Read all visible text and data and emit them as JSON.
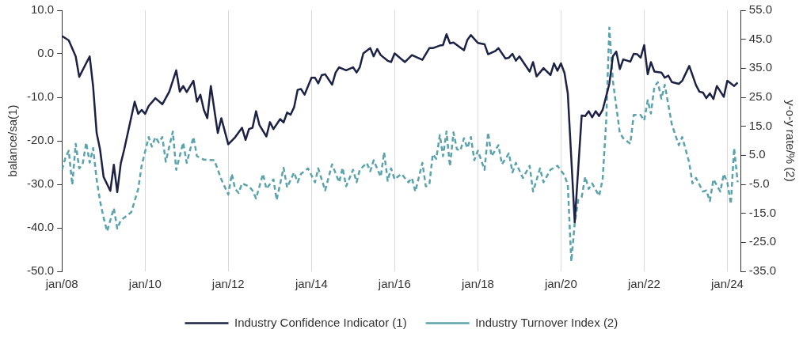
{
  "chart_data": {
    "type": "line",
    "ylabel": "balance/sa(1)",
    "y2label": "y-o-y rate/% (2)",
    "xlim": [
      "2008-01",
      "2024-05"
    ],
    "xticks": [
      {
        "value": "2008-01",
        "label": "jan/08"
      },
      {
        "value": "2010-01",
        "label": "jan/10"
      },
      {
        "value": "2012-01",
        "label": "jan/12"
      },
      {
        "value": "2014-01",
        "label": "jan/14"
      },
      {
        "value": "2016-01",
        "label": "jan/16"
      },
      {
        "value": "2018-01",
        "label": "jan/18"
      },
      {
        "value": "2020-01",
        "label": "jan/20"
      },
      {
        "value": "2022-01",
        "label": "jan/22"
      },
      {
        "value": "2024-01",
        "label": "jan/24"
      }
    ],
    "ylim": [
      -50,
      10
    ],
    "yticks": [
      {
        "value": 10,
        "label": "10.0"
      },
      {
        "value": 0,
        "label": "0.0"
      },
      {
        "value": -10,
        "label": "-10.0"
      },
      {
        "value": -20,
        "label": "-20.0"
      },
      {
        "value": -30,
        "label": "-30.0"
      },
      {
        "value": -40,
        "label": "-40.0"
      },
      {
        "value": -50,
        "label": "-50.0"
      }
    ],
    "y2lim": [
      -35,
      55
    ],
    "y2ticks": [
      {
        "value": 55,
        "label": "55.0"
      },
      {
        "value": 45,
        "label": "45.0"
      },
      {
        "value": 35,
        "label": "35.0"
      },
      {
        "value": 25,
        "label": "25.0"
      },
      {
        "value": 15,
        "label": "15.0"
      },
      {
        "value": 5,
        "label": "5.0"
      },
      {
        "value": -5,
        "label": "-5.0"
      },
      {
        "value": -15,
        "label": "-15.0"
      },
      {
        "value": -25,
        "label": "-25.0"
      },
      {
        "value": -35,
        "label": "-35.0"
      }
    ],
    "grid": "x",
    "legend": "bottom",
    "marker": "none",
    "series": [
      {
        "name": "Industry Confidence Indicator (1)",
        "color": "#1c2145",
        "line_style": "solid",
        "x": [
          "2008-01",
          "2008-03",
          "2008-05",
          "2008-06",
          "2008-09",
          "2008-10",
          "2008-11",
          "2008-12",
          "2009-01",
          "2009-03",
          "2009-04",
          "2009-05",
          "2009-06",
          "2009-07",
          "2009-10",
          "2009-11",
          "2009-12",
          "2010-01",
          "2010-02",
          "2010-04",
          "2010-06",
          "2010-08",
          "2010-10",
          "2010-11",
          "2010-12",
          "2011-01",
          "2011-03",
          "2011-04",
          "2011-05",
          "2011-06",
          "2011-07",
          "2011-08",
          "2011-10",
          "2011-11",
          "2012-01",
          "2012-03",
          "2012-05",
          "2012-06",
          "2012-07",
          "2012-08",
          "2012-09",
          "2012-10",
          "2012-12",
          "2013-01",
          "2013-02",
          "2013-04",
          "2013-05",
          "2013-06",
          "2013-07",
          "2013-08",
          "2013-09",
          "2013-10",
          "2013-11",
          "2014-01",
          "2014-02",
          "2014-03",
          "2014-04",
          "2014-05",
          "2014-07",
          "2014-08",
          "2014-09",
          "2014-11",
          "2015-01",
          "2015-02",
          "2015-03",
          "2015-04",
          "2015-06",
          "2015-07",
          "2015-08",
          "2015-09",
          "2015-11",
          "2015-12",
          "2016-01",
          "2016-04",
          "2016-06",
          "2016-09",
          "2016-11",
          "2016-12",
          "2017-02",
          "2017-03",
          "2017-04",
          "2017-05",
          "2017-06",
          "2017-09",
          "2017-10",
          "2017-11",
          "2018-01",
          "2018-03",
          "2018-04",
          "2018-06",
          "2018-07",
          "2018-09",
          "2018-10",
          "2018-11",
          "2018-12",
          "2019-01",
          "2019-04",
          "2019-05",
          "2019-06",
          "2019-08",
          "2019-10",
          "2019-11",
          "2019-12",
          "2020-01",
          "2020-02",
          "2020-03",
          "2020-05",
          "2020-07",
          "2020-08",
          "2020-09",
          "2020-10",
          "2020-11",
          "2020-12",
          "2021-01",
          "2021-02",
          "2021-03",
          "2021-04",
          "2021-05",
          "2021-06",
          "2021-07",
          "2021-09",
          "2021-10",
          "2021-11",
          "2021-12",
          "2022-01",
          "2022-02",
          "2022-03",
          "2022-04",
          "2022-06",
          "2022-07",
          "2022-08",
          "2022-09",
          "2022-11",
          "2022-12",
          "2023-02",
          "2023-04",
          "2023-05",
          "2023-06",
          "2023-07",
          "2023-08",
          "2023-09",
          "2023-10",
          "2023-12",
          "2024-01",
          "2024-03",
          "2024-04"
        ],
        "values": [
          4.1,
          3.1,
          -0.6,
          -5.3,
          -0.6,
          -7.5,
          -18.2,
          -22,
          -28.3,
          -31.5,
          -25.5,
          -31.8,
          -25.2,
          -22,
          -11,
          -13.8,
          -12.9,
          -13.8,
          -12,
          -10.2,
          -11.6,
          -8.7,
          -3.8,
          -8.7,
          -7.4,
          -8.8,
          -6.2,
          -11,
          -9.4,
          -12.9,
          -14.8,
          -7.4,
          -18.2,
          -14.8,
          -20.8,
          -19.2,
          -17,
          -19.8,
          -17.3,
          -17,
          -13.2,
          -16.4,
          -19,
          -15.7,
          -17.3,
          -15,
          -15.8,
          -13.5,
          -14,
          -12.3,
          -8.3,
          -8.1,
          -9.4,
          -5.5,
          -5.5,
          -6.8,
          -4.9,
          -4.7,
          -7.1,
          -4.3,
          -3.1,
          -3.8,
          -3.1,
          -4.3,
          -3.1,
          0.1,
          1.3,
          -0.6,
          1.1,
          -0.3,
          -1.6,
          -1.9,
          0.1,
          -1.9,
          -0.3,
          -1.4,
          1.3,
          1.3,
          1.9,
          2,
          4.5,
          2.4,
          2.6,
          0.8,
          3.2,
          4.3,
          2.5,
          2.2,
          -0.1,
          0.6,
          1.3,
          -1.1,
          -0.9,
          0,
          -1.6,
          -0.6,
          -4.1,
          -1.9,
          -5.2,
          -3.3,
          -4.9,
          -2.2,
          -3.9,
          -2.2,
          -4.4,
          -9.1,
          -38.7,
          -14.2,
          -14.3,
          -13.2,
          -14.6,
          -13.2,
          -14.3,
          -12.9,
          -9.8,
          -6.9,
          -0.6,
          0.5,
          -3.5,
          -1.3,
          -1.8,
          0,
          -0.1,
          -0.9,
          2,
          -4.7,
          -1.9,
          -4.1,
          -4.3,
          -5.5,
          -5,
          -6.5,
          -6.9,
          -6.2,
          -2.8,
          -7.2,
          -8.7,
          -8.9,
          -10.2,
          -9.1,
          -10.4,
          -7.4,
          -9.9,
          -6.2,
          -7.4,
          -6.6
        ]
      },
      {
        "name": "Industry Turnover Index (2)",
        "color": "#5aa3ad",
        "line_style": "dashed",
        "axis": "y2",
        "x": [
          "2008-01",
          "2008-02",
          "2008-03",
          "2008-04",
          "2008-05",
          "2008-06",
          "2008-07",
          "2008-08",
          "2008-09",
          "2008-10",
          "2008-11",
          "2008-12",
          "2009-01",
          "2009-02",
          "2009-04",
          "2009-05",
          "2009-06",
          "2009-09",
          "2009-11",
          "2009-12",
          "2010-02",
          "2010-03",
          "2010-04",
          "2010-05",
          "2010-06",
          "2010-07",
          "2010-09",
          "2010-10",
          "2010-12",
          "2011-01",
          "2011-03",
          "2011-04",
          "2011-06",
          "2011-09",
          "2011-11",
          "2012-01",
          "2012-02",
          "2012-03",
          "2012-04",
          "2012-05",
          "2012-07",
          "2012-08",
          "2012-09",
          "2012-11",
          "2012-12",
          "2013-02",
          "2013-03",
          "2013-05",
          "2013-06",
          "2013-08",
          "2013-09",
          "2013-10",
          "2013-12",
          "2014-02",
          "2014-03",
          "2014-05",
          "2014-07",
          "2014-09",
          "2014-10",
          "2014-11",
          "2015-01",
          "2015-02",
          "2015-03",
          "2015-05",
          "2015-06",
          "2015-07",
          "2015-09",
          "2015-10",
          "2015-11",
          "2015-12",
          "2016-01",
          "2016-03",
          "2016-05",
          "2016-06",
          "2016-07",
          "2016-09",
          "2016-10",
          "2016-11",
          "2016-12",
          "2017-01",
          "2017-02",
          "2017-03",
          "2017-04",
          "2017-05",
          "2017-06",
          "2017-07",
          "2017-08",
          "2017-09",
          "2017-10",
          "2017-11",
          "2017-12",
          "2018-01",
          "2018-03",
          "2018-04",
          "2018-05",
          "2018-07",
          "2018-08",
          "2018-10",
          "2018-11",
          "2018-12",
          "2019-02",
          "2019-04",
          "2019-05",
          "2019-07",
          "2019-08",
          "2019-10",
          "2019-12",
          "2020-02",
          "2020-03",
          "2020-04",
          "2020-05",
          "2020-06",
          "2020-07",
          "2020-08",
          "2020-09",
          "2020-10",
          "2020-12",
          "2021-01",
          "2021-02",
          "2021-03",
          "2021-04",
          "2021-06",
          "2021-07",
          "2021-09",
          "2021-10",
          "2021-12",
          "2022-01",
          "2022-02",
          "2022-03",
          "2022-04",
          "2022-05",
          "2022-06",
          "2022-07",
          "2022-09",
          "2022-11",
          "2022-12",
          "2023-02",
          "2023-03",
          "2023-04",
          "2023-06",
          "2023-07",
          "2023-08",
          "2023-09",
          "2023-11",
          "2023-12",
          "2024-01",
          "2024-02",
          "2024-03",
          "2024-04"
        ],
        "values": [
          0,
          4.2,
          6.6,
          -5.2,
          9,
          0.5,
          1.9,
          9.4,
          2.5,
          7.5,
          -3.3,
          -10.8,
          -16.5,
          -21.2,
          -13.2,
          -20.3,
          -17.4,
          -14.6,
          -6.6,
          1.4,
          11.3,
          8,
          11.3,
          9.4,
          11.3,
          2.8,
          13.2,
          0,
          9.4,
          2.4,
          11.3,
          4.7,
          3.5,
          3.3,
          -3.3,
          -8.5,
          -1.4,
          -6.6,
          -8,
          -4.7,
          -5.7,
          -7.1,
          -9.9,
          -1.4,
          -6.6,
          -3.3,
          -10.4,
          0.7,
          -6.1,
          -0.9,
          -4.3,
          -1.4,
          0.5,
          -4.3,
          0.5,
          -7.1,
          1.9,
          -4.3,
          0.7,
          -5.7,
          0,
          -4.3,
          0,
          2.4,
          -0.5,
          3.3,
          -2.4,
          6.1,
          -3.8,
          0.5,
          -3.3,
          -1.4,
          -4.3,
          -2.8,
          -7.5,
          2.4,
          -5.7,
          -5.2,
          5.4,
          3.8,
          12,
          4.7,
          13.2,
          1.2,
          12.9,
          7.1,
          6.6,
          10.9,
          7.5,
          11.3,
          3.3,
          6.6,
          0,
          12.9,
          4.7,
          8.5,
          1.9,
          5.7,
          -0.9,
          2.4,
          -2.8,
          1.4,
          -7.5,
          0.5,
          -4.3,
          0,
          1.4,
          -1.9,
          -5.2,
          -31.6,
          -18.4,
          -10.4,
          -9.4,
          -2.4,
          -6.6,
          -4.7,
          -9,
          -3.3,
          16.5,
          49.1,
          30.7,
          12.7,
          10.9,
          9,
          18.9,
          18.9,
          17,
          24,
          19.4,
          28.8,
          30.2,
          24.5,
          29.3,
          15.6,
          8.5,
          11.3,
          2.4,
          -4.7,
          -2.8,
          -7.5,
          -7.1,
          -10.8,
          -3.3,
          -7.5,
          -1.4,
          -4.3,
          -11.8,
          7.5,
          -4.3
        ]
      }
    ]
  }
}
